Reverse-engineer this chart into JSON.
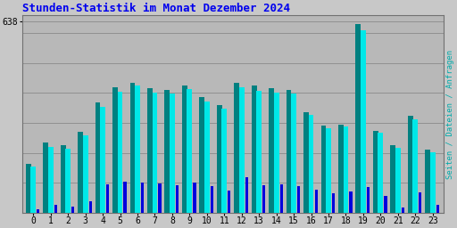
{
  "title": "Stunden-Statistik im Monat Dezember 2024",
  "title_color": "#0000ee",
  "ylabel_right": "Seiten / Dateien / Anfragen",
  "ylabel_right_color": "#00aaaa",
  "background_color": "#c8c8c8",
  "plot_bg_color": "#b8b8b8",
  "grid_color": "#909090",
  "xlabel_color": "#000000",
  "categories": [
    0,
    1,
    2,
    3,
    4,
    5,
    6,
    7,
    8,
    9,
    10,
    11,
    12,
    13,
    14,
    15,
    16,
    17,
    18,
    19,
    20,
    21,
    22,
    23
  ],
  "seiten": [
    165,
    235,
    225,
    270,
    370,
    420,
    435,
    415,
    410,
    425,
    385,
    360,
    435,
    425,
    415,
    410,
    335,
    290,
    295,
    630,
    275,
    225,
    325,
    210
  ],
  "dateien": [
    155,
    220,
    215,
    260,
    355,
    405,
    425,
    400,
    398,
    412,
    372,
    347,
    418,
    408,
    402,
    397,
    327,
    283,
    288,
    610,
    268,
    218,
    313,
    202
  ],
  "anfragen": [
    12,
    28,
    22,
    40,
    95,
    105,
    100,
    98,
    92,
    100,
    88,
    75,
    120,
    92,
    95,
    90,
    78,
    65,
    70,
    85,
    58,
    18,
    68,
    28
  ],
  "color_seiten": "#008080",
  "color_dateien": "#00e8e8",
  "color_anfragen": "#0000dd",
  "bar_width": 0.3,
  "ylim_max": 660,
  "ylim_min": 0,
  "ytick_vals": [
    638
  ],
  "ytick_labels": [
    "638"
  ],
  "grid_vals": [
    100,
    200,
    300,
    400,
    500,
    600,
    638
  ]
}
